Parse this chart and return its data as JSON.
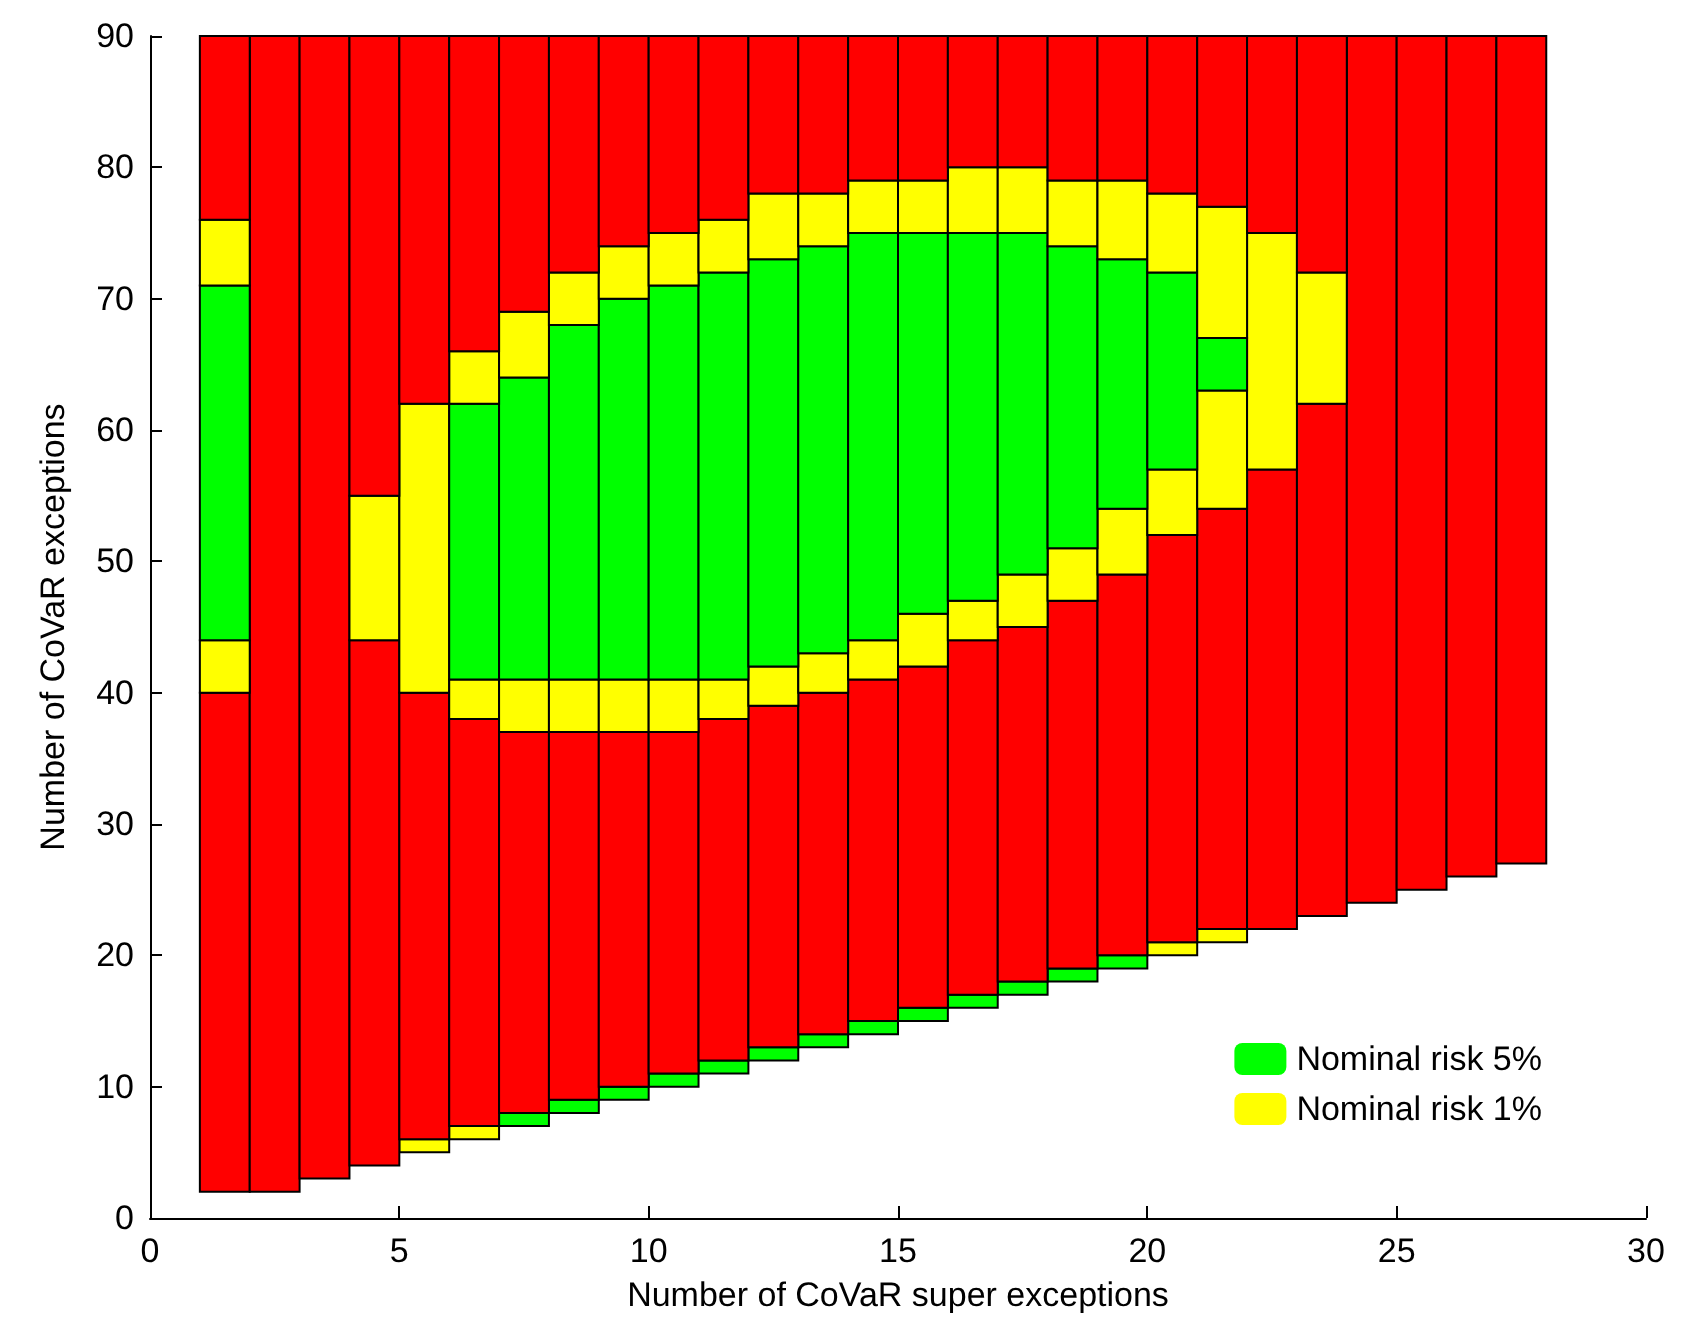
{
  "chart_data": {
    "type": "bar",
    "xlabel": "Number of CoVaR super exceptions",
    "ylabel": "Number of CoVaR exceptions",
    "x": [
      1.5,
      2.5,
      3.5,
      4.5,
      5.5,
      6.5,
      7.5,
      8.5,
      9.5,
      10.5,
      11.5,
      12.5,
      13.5,
      14.5,
      15.5,
      16.5,
      17.5,
      18.5,
      19.5,
      20.5,
      21.5,
      22.5,
      23.5,
      24.5,
      25.5,
      26.5,
      27.5
    ],
    "xlim": [
      0,
      30
    ],
    "xticks": [
      0,
      5,
      10,
      15,
      20,
      25,
      30
    ],
    "ylim": [
      0,
      90
    ],
    "yticks": [
      0,
      10,
      20,
      30,
      40,
      50,
      60,
      70,
      80,
      90
    ],
    "legend": "bottom right",
    "series": [
      {
        "color": "#00ff00",
        "colors": [
          null,
          null,
          null,
          null,
          "#ffff00",
          "#ffff00",
          "#00ff00",
          "#00ff00",
          "#00ff00",
          "#00ff00",
          "#00ff00",
          "#00ff00",
          "#00ff00",
          "#00ff00",
          "#00ff00",
          "#00ff00",
          "#00ff00",
          "#00ff00",
          "#00ff00",
          "#ffff00",
          "#ffff00",
          null,
          null,
          null,
          null,
          null,
          null
        ],
        "base": [
          null,
          null,
          null,
          null,
          5,
          6,
          7,
          8,
          9,
          10,
          11,
          12,
          13,
          14,
          15,
          16,
          17,
          18,
          19,
          20,
          21,
          null,
          null,
          null,
          null,
          null,
          null
        ],
        "values": [
          null,
          null,
          null,
          null,
          1,
          1,
          1,
          1,
          1,
          1,
          1,
          1,
          1,
          1,
          1,
          1,
          1,
          1,
          1,
          1,
          1,
          null,
          null,
          null,
          null,
          null,
          null
        ]
      },
      {
        "color": "#ff0000",
        "base": [
          2,
          2,
          3,
          4,
          6,
          7,
          8,
          9,
          10,
          11,
          12,
          13,
          14,
          15,
          16,
          17,
          18,
          19,
          20,
          21,
          22,
          22,
          23,
          24,
          25,
          26,
          27
        ],
        "values": [
          38,
          88,
          87,
          40,
          34,
          31,
          29,
          28,
          27,
          26,
          26,
          26,
          26,
          26,
          26,
          27,
          27,
          28,
          29,
          31,
          32,
          35,
          39,
          66,
          65,
          64,
          63
        ]
      },
      {
        "color": "#ffff00",
        "base": [
          40,
          null,
          null,
          44,
          40,
          38,
          37,
          37,
          37,
          37,
          38,
          39,
          40,
          41,
          42,
          44,
          45,
          47,
          49,
          52,
          54,
          57,
          62,
          null,
          null,
          null,
          null
        ],
        "values": [
          4,
          null,
          null,
          11,
          22,
          3,
          4,
          4,
          4,
          4,
          3,
          3,
          3,
          3,
          4,
          3,
          4,
          4,
          5,
          5,
          9,
          18,
          10,
          null,
          null,
          null,
          null
        ]
      },
      {
        "name": "Nominal risk 5%",
        "color": "#00ff00",
        "base": [
          44,
          null,
          null,
          null,
          null,
          41,
          41,
          41,
          41,
          41,
          41,
          42,
          43,
          44,
          46,
          47,
          49,
          51,
          54,
          57,
          63,
          null,
          null,
          null,
          null,
          null,
          null
        ],
        "values": [
          27,
          null,
          null,
          null,
          null,
          21,
          23,
          27,
          29,
          30,
          31,
          31,
          31,
          31,
          29,
          28,
          26,
          23,
          19,
          15,
          4,
          null,
          null,
          null,
          null,
          null,
          null
        ]
      },
      {
        "name": "Nominal risk 1%",
        "color": "#ffff00",
        "base": [
          71,
          null,
          null,
          null,
          null,
          62,
          64,
          68,
          70,
          71,
          72,
          73,
          74,
          75,
          75,
          75,
          75,
          74,
          73,
          72,
          67,
          null,
          null,
          null,
          null,
          null,
          null
        ],
        "values": [
          5,
          null,
          null,
          null,
          null,
          4,
          5,
          4,
          4,
          4,
          4,
          5,
          4,
          4,
          4,
          5,
          5,
          5,
          6,
          6,
          10,
          null,
          null,
          null,
          null,
          null,
          null
        ]
      },
      {
        "color": "#ff0000",
        "base": [
          76,
          null,
          null,
          55,
          62,
          66,
          69,
          72,
          74,
          75,
          76,
          78,
          78,
          79,
          79,
          80,
          80,
          79,
          79,
          78,
          77,
          75,
          72,
          null,
          null,
          null,
          null
        ],
        "values": [
          14,
          null,
          null,
          35,
          28,
          24,
          21,
          18,
          16,
          15,
          14,
          12,
          12,
          11,
          11,
          10,
          10,
          11,
          11,
          12,
          13,
          15,
          18,
          null,
          null,
          null,
          null
        ]
      }
    ]
  }
}
